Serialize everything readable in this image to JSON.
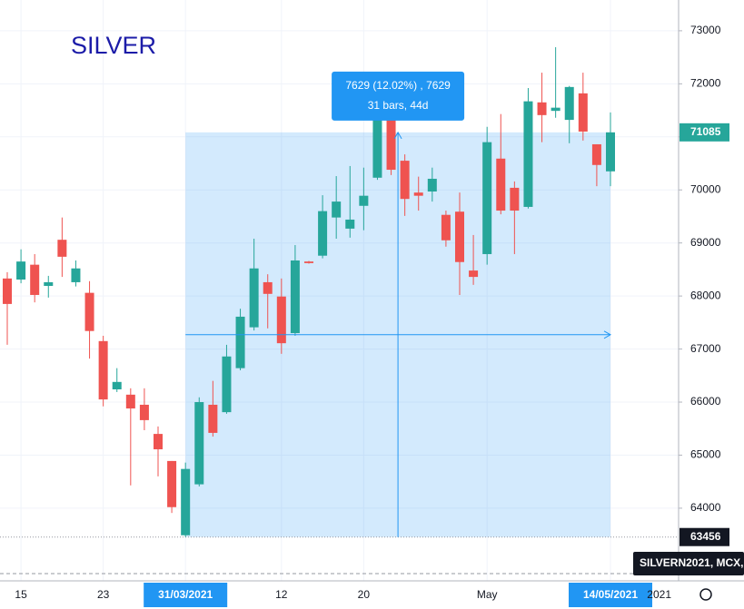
{
  "chart_data": {
    "type": "candlestick",
    "title": "SILVER",
    "categories": [
      null,
      "15",
      null,
      null,
      null,
      null,
      null,
      "23",
      null,
      null,
      null,
      null,
      null,
      "31/03/2021",
      null,
      null,
      null,
      null,
      null,
      null,
      "12",
      null,
      null,
      null,
      null,
      null,
      "20",
      null,
      null,
      null,
      null,
      null,
      null,
      null,
      null,
      "May",
      null,
      null,
      null,
      null,
      null,
      null,
      null,
      null,
      "14/05/2021"
    ],
    "series": [
      {
        "name": "SILVERN2021, MCX,",
        "up_color": "#26a69a",
        "down_color": "#ef5350",
        "open": [
          68330,
          68310,
          68590,
          68190,
          69060,
          68260,
          68060,
          67150,
          66240,
          66140,
          65950,
          65400,
          64890,
          63490,
          64450,
          65950,
          65810,
          66640,
          67410,
          68260,
          67990,
          67300,
          68650,
          68760,
          69480,
          69270,
          69700,
          70230,
          71440,
          70550,
          69950,
          69970,
          69530,
          69590,
          68480,
          68790,
          70590,
          70040,
          69680,
          71650,
          71490,
          71320,
          71820,
          70860,
          70350
        ],
        "high": [
          68450,
          68880,
          68790,
          68380,
          69480,
          68670,
          68280,
          67250,
          66640,
          66260,
          66260,
          65540,
          64890,
          64860,
          66090,
          66400,
          67080,
          67760,
          69080,
          68410,
          68330,
          68960,
          68660,
          69900,
          70260,
          70450,
          70420,
          71700,
          71700,
          70670,
          70250,
          70420,
          69610,
          69950,
          69150,
          71190,
          71430,
          70160,
          71920,
          72210,
          72690,
          71960,
          72210,
          70860,
          71460
        ],
        "low": [
          67080,
          68240,
          67880,
          67970,
          68360,
          68180,
          66820,
          65920,
          66190,
          64430,
          65470,
          64600,
          63910,
          63456,
          64410,
          65350,
          65780,
          66600,
          67350,
          67390,
          66910,
          67250,
          68610,
          68710,
          69080,
          69100,
          69240,
          70190,
          70280,
          69510,
          69610,
          69780,
          68930,
          68020,
          68210,
          68590,
          69540,
          68790,
          69650,
          70900,
          71360,
          70880,
          70930,
          70070,
          70070
        ],
        "close": [
          67850,
          68650,
          68020,
          68260,
          68740,
          68520,
          67340,
          66050,
          66380,
          65880,
          65660,
          65110,
          64020,
          64740,
          66000,
          65420,
          66860,
          67610,
          68520,
          68040,
          67110,
          68670,
          68620,
          69600,
          69780,
          69440,
          69890,
          71560,
          70380,
          69830,
          69890,
          70210,
          69050,
          68640,
          68360,
          70900,
          69610,
          69610,
          71670,
          71410,
          71550,
          71940,
          71100,
          70470,
          71085
        ]
      }
    ],
    "ylim": [
      62630,
      73580
    ],
    "yticks": [
      64000,
      65000,
      66000,
      67000,
      68000,
      69000,
      70000,
      71000,
      72000,
      73000
    ],
    "grid": true,
    "range": {
      "low": 63456,
      "high": 71085,
      "label": "7629 (12.02%) , 7629",
      "sub_label": "31 bars, 44d",
      "color": "#2196f3"
    },
    "axis_year": "2021"
  }
}
